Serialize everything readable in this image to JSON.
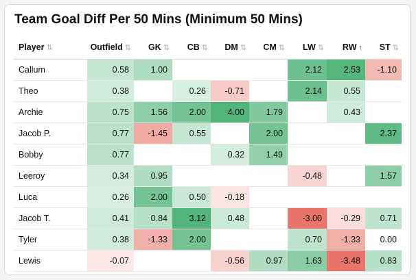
{
  "title": "Team Goal Diff Per 50 Mins (Minimum 50 Mins)",
  "columns": [
    {
      "label": "Player",
      "sort": "⇅"
    },
    {
      "label": "Outfield",
      "sort": "⇅"
    },
    {
      "label": "GK",
      "sort": "⇅"
    },
    {
      "label": "CB",
      "sort": "⇅"
    },
    {
      "label": "DM",
      "sort": "⇅"
    },
    {
      "label": "CM",
      "sort": "⇅"
    },
    {
      "label": "LW",
      "sort": "⇅"
    },
    {
      "label": "RW",
      "sort": "↑"
    },
    {
      "label": "ST",
      "sort": "⇅"
    }
  ],
  "active_sort_column": "RW",
  "colors": {
    "positive": "#52b47b",
    "negative": "#e8746a"
  },
  "rows": [
    {
      "player": "Callum",
      "values": [
        "0.58",
        "1.00",
        "",
        "",
        "",
        "2.12",
        "2.53",
        "-1.10"
      ]
    },
    {
      "player": "Theo",
      "values": [
        "0.38",
        "",
        "0.26",
        "-0.71",
        "",
        "2.14",
        "0.55",
        ""
      ]
    },
    {
      "player": "Archie",
      "values": [
        "0.75",
        "1.56",
        "2.00",
        "4.00",
        "1.79",
        "",
        "0.43",
        ""
      ]
    },
    {
      "player": "Jacob P.",
      "values": [
        "0.77",
        "-1.45",
        "0.55",
        "",
        "2.00",
        "",
        "",
        "2.37"
      ]
    },
    {
      "player": "Bobby",
      "values": [
        "0.77",
        "",
        "",
        "0.32",
        "1.49",
        "",
        "",
        ""
      ]
    },
    {
      "player": "Leeroy",
      "values": [
        "0.34",
        "0.95",
        "",
        "",
        "",
        "-0.48",
        "",
        "1.57"
      ]
    },
    {
      "player": "Luca",
      "values": [
        "0.26",
        "2.00",
        "0.50",
        "-0.18",
        "",
        "",
        "",
        ""
      ]
    },
    {
      "player": "Jacob T.",
      "values": [
        "0.41",
        "0.84",
        "3.12",
        "0.48",
        "",
        "-3.00",
        "-0.29",
        "0.71"
      ]
    },
    {
      "player": "Tyler",
      "values": [
        "0.38",
        "-1.33",
        "2.00",
        "",
        "",
        "0.70",
        "-1.33",
        "0.00"
      ]
    },
    {
      "player": "Lewis",
      "values": [
        "-0.07",
        "",
        "",
        "-0.56",
        "0.97",
        "1.63",
        "-3.48",
        "0.83"
      ]
    }
  ]
}
